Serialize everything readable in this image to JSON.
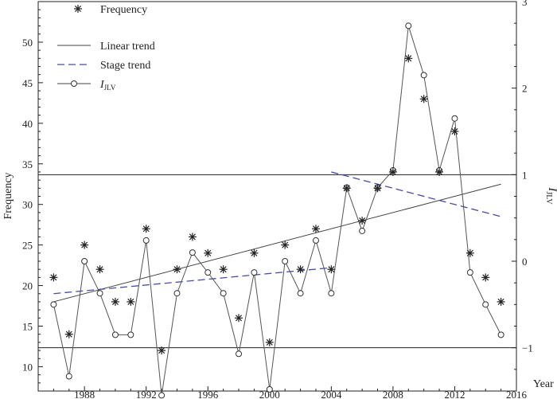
{
  "chart_data": {
    "type": "line",
    "title": "",
    "xlabel": "Year",
    "ylabel_left": "Frequency",
    "ylabel_right_main": "I",
    "ylabel_right_sub": "JLV",
    "xlim": [
      1985,
      2016
    ],
    "ylim_left": [
      7,
      55
    ],
    "ylim_right": [
      -1.5,
      3
    ],
    "x_ticks": [
      1988,
      1992,
      1996,
      2000,
      2004,
      2008,
      2012,
      2016
    ],
    "y_left_ticks": [
      10,
      15,
      20,
      25,
      30,
      35,
      40,
      45,
      50
    ],
    "y_right_ticks": [
      -1,
      0,
      1,
      2,
      3
    ],
    "y_right_tick_labels": [
      "−1",
      "0",
      "1",
      "2",
      "3"
    ],
    "legend": {
      "position": "top-left",
      "frequency": "Frequency",
      "linear": "Linear trend",
      "stage": "Stage trend",
      "index_main": "I",
      "index_sub": "JLV"
    },
    "frequency": {
      "x": [
        1986,
        1987,
        1988,
        1989,
        1990,
        1991,
        1992,
        1993,
        1994,
        1995,
        1996,
        1997,
        1998,
        1999,
        2000,
        2001,
        2002,
        2003,
        2004,
        2005,
        2006,
        2007,
        2008,
        2009,
        2010,
        2011,
        2012,
        2013,
        2014,
        2015
      ],
      "values": [
        21,
        14,
        25,
        22,
        18,
        18,
        27,
        12,
        22,
        26,
        24,
        22,
        16,
        24,
        13,
        25,
        22,
        27,
        22,
        32,
        28,
        32,
        34,
        48,
        43,
        34,
        39,
        24,
        21,
        18
      ]
    },
    "index": {
      "x": [
        1986,
        1987,
        1988,
        1989,
        1990,
        1991,
        1992,
        1993,
        1994,
        1995,
        1996,
        1997,
        1998,
        1999,
        2000,
        2001,
        2002,
        2003,
        2004,
        2005,
        2006,
        2007,
        2008,
        2009,
        2010,
        2011,
        2012,
        2013,
        2014,
        2015
      ],
      "values": [
        -0.5,
        -1.33,
        0,
        -0.37,
        -0.85,
        -0.85,
        0.24,
        -1.55,
        -0.37,
        0.1,
        -0.13,
        -0.37,
        -1.07,
        -0.13,
        -1.48,
        0,
        -0.37,
        0.24,
        -0.37,
        0.85,
        0.35,
        0.85,
        1.05,
        2.72,
        2.15,
        1.05,
        1.65,
        -0.13,
        -0.5,
        -0.85
      ]
    },
    "linear_trend": {
      "x": [
        1986,
        2015
      ],
      "y": [
        18.0,
        32.5
      ]
    },
    "stage_trend": [
      {
        "x": [
          1986,
          2004
        ],
        "y": [
          19.0,
          22.2
        ]
      },
      {
        "x": [
          2004,
          2015
        ],
        "y": [
          34.0,
          28.5
        ]
      }
    ],
    "reference_lines_right": [
      1,
      -1
    ]
  }
}
